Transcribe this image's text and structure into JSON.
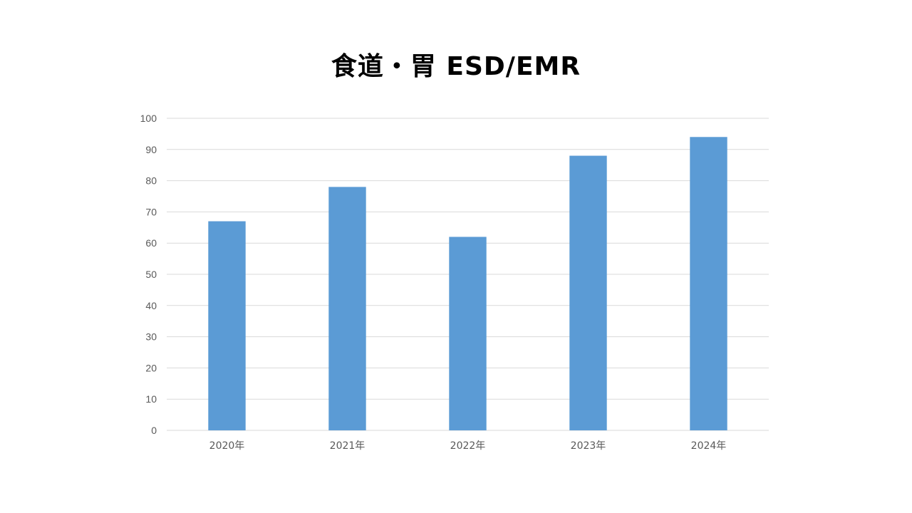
{
  "chart_data": {
    "type": "bar",
    "title": "食道・胃 ESD/EMR",
    "xlabel": "",
    "ylabel": "",
    "categories": [
      "2020年",
      "2021年",
      "2022年",
      "2023年",
      "2024年"
    ],
    "values": [
      67,
      78,
      62,
      88,
      94
    ],
    "ylim": [
      0,
      100
    ],
    "yticks": [
      0,
      10,
      20,
      30,
      40,
      50,
      60,
      70,
      80,
      90,
      100
    ],
    "grid": true,
    "legend": "none",
    "bar_color": "#5B9BD5"
  }
}
